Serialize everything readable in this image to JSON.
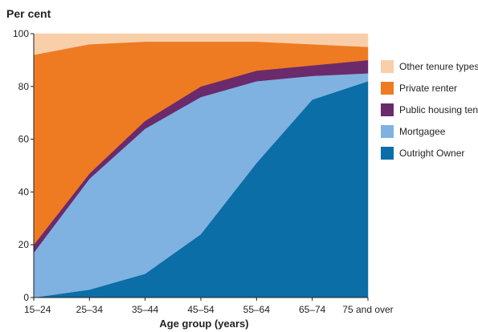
{
  "chart_data": {
    "type": "area",
    "stacked": true,
    "ylabel": "Per cent",
    "xlabel": "Age group (years)",
    "ylim": [
      0,
      100
    ],
    "yticks": [
      0,
      20,
      40,
      60,
      80,
      100
    ],
    "categories": [
      "15–24",
      "25–34",
      "35–44",
      "45–54",
      "55–64",
      "65–74",
      "75 and over"
    ],
    "series": [
      {
        "name": "Outright Owner",
        "color": "#0b6ea6",
        "values": [
          0,
          3,
          9,
          24,
          51,
          75,
          82
        ]
      },
      {
        "name": "Mortgagee",
        "color": "#7fb2e1",
        "values": [
          17,
          42,
          55,
          52,
          31,
          9,
          3
        ]
      },
      {
        "name": "Public housing tenant",
        "color": "#6b2a6b",
        "values": [
          3,
          2,
          3,
          4,
          4,
          4,
          5
        ]
      },
      {
        "name": "Private renter",
        "color": "#ee7b22",
        "values": [
          72,
          49,
          30,
          17,
          11,
          8,
          5
        ]
      },
      {
        "name": "Other tenure types",
        "color": "#f8cfa9",
        "values": [
          8,
          4,
          3,
          3,
          3,
          4,
          5
        ]
      }
    ],
    "legend_position": "right",
    "legend_order": [
      "Other tenure types",
      "Private renter",
      "Public housing tenant",
      "Mortgagee",
      "Outright Owner"
    ],
    "grid": false
  }
}
